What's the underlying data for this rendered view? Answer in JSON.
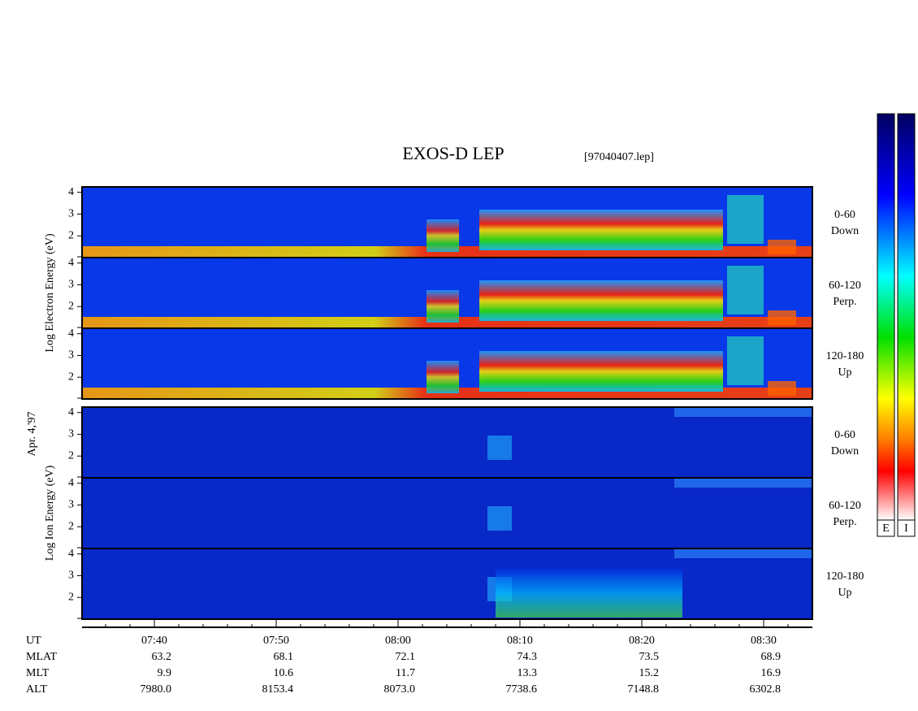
{
  "chart_data": {
    "type": "spectrogram",
    "title": "EXOS-D LEP",
    "file": "[97040407.lep]",
    "date_label": "Apr. 4,'97",
    "groups": [
      {
        "axis_label": "Log Electron Energy (eV)",
        "colorbar_label": "E",
        "panels": [
          {
            "angle": "0-60",
            "direction": "Down"
          },
          {
            "angle": "60-120",
            "direction": "Perp."
          },
          {
            "angle": "120-180",
            "direction": "Up"
          }
        ]
      },
      {
        "axis_label": "Log Ion Energy (eV)",
        "colorbar_label": "I",
        "panels": [
          {
            "angle": "0-60",
            "direction": "Down"
          },
          {
            "angle": "60-120",
            "direction": "Perp."
          },
          {
            "angle": "120-180",
            "direction": "Up"
          }
        ]
      }
    ],
    "ylim": [
      1,
      4.25
    ],
    "yticks": [
      2,
      3,
      4
    ],
    "x_label": "UT",
    "xticks": [
      "07:40",
      "07:50",
      "08:00",
      "08:10",
      "08:20",
      "08:30"
    ],
    "ephemeris": [
      {
        "label": "MLAT",
        "values": [
          63.2,
          68.1,
          72.1,
          74.3,
          73.5,
          68.9
        ]
      },
      {
        "label": "MLT",
        "values": [
          9.9,
          10.6,
          11.7,
          13.3,
          15.2,
          16.9
        ]
      },
      {
        "label": "ALT",
        "values": [
          "7980.0",
          "8153.4",
          "8073.0",
          "7738.6",
          "7148.8",
          "6302.8"
        ]
      }
    ]
  }
}
